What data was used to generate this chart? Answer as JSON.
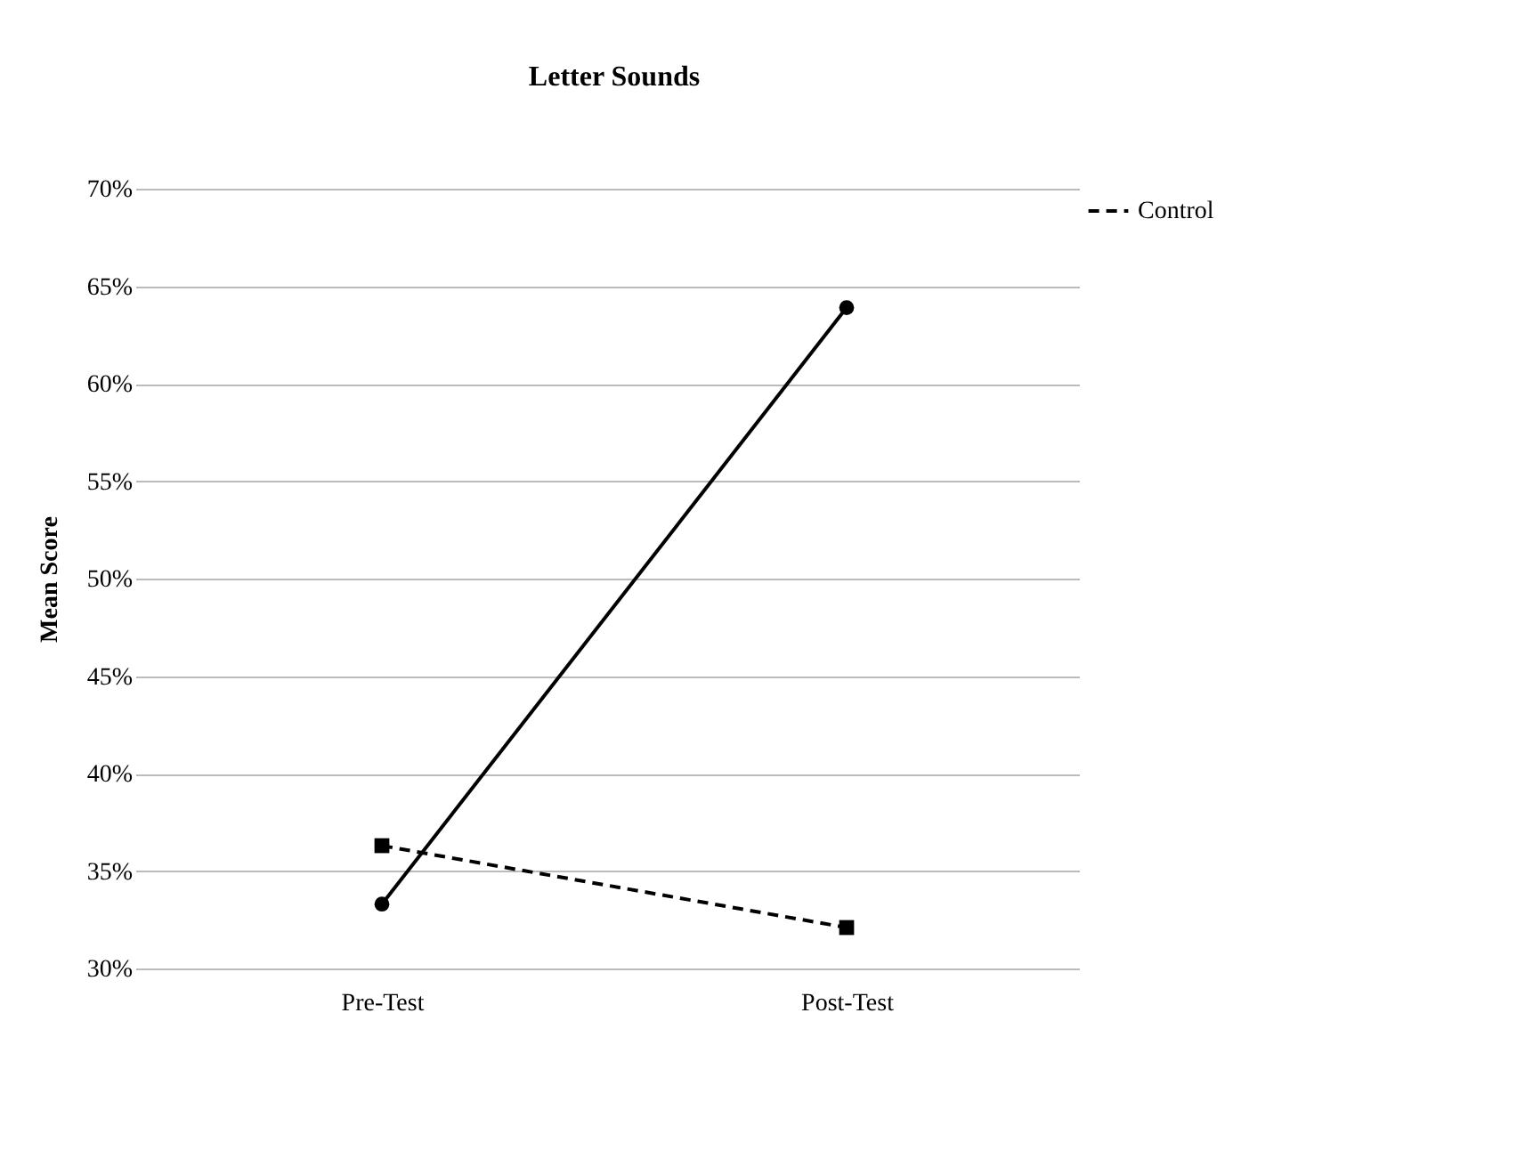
{
  "chart_data": {
    "type": "line",
    "title": "Letter Sounds",
    "ylabel": "Mean Score",
    "categories": [
      "Pre-Test",
      "Post-Test"
    ],
    "series": [
      {
        "color": "#000000",
        "values": [
          33.3,
          63.9
        ],
        "marker": "circle",
        "line_style": "solid"
      },
      {
        "name": "Control",
        "color": "#000000",
        "values": [
          36.3,
          32.1
        ],
        "marker": "square",
        "line_style": "dashed"
      }
    ],
    "ylim": [
      30,
      70
    ],
    "yticks": [
      {
        "value": 30,
        "label": "30%"
      },
      {
        "value": 35,
        "label": "35%"
      },
      {
        "value": 40,
        "label": "40%"
      },
      {
        "value": 45,
        "label": "45%"
      },
      {
        "value": 50,
        "label": "50%"
      },
      {
        "value": 55,
        "label": "55%"
      },
      {
        "value": 60,
        "label": "60%"
      },
      {
        "value": 65,
        "label": "65%"
      },
      {
        "value": 70,
        "label": "70%"
      }
    ],
    "grid": "y",
    "legend": "top right"
  }
}
